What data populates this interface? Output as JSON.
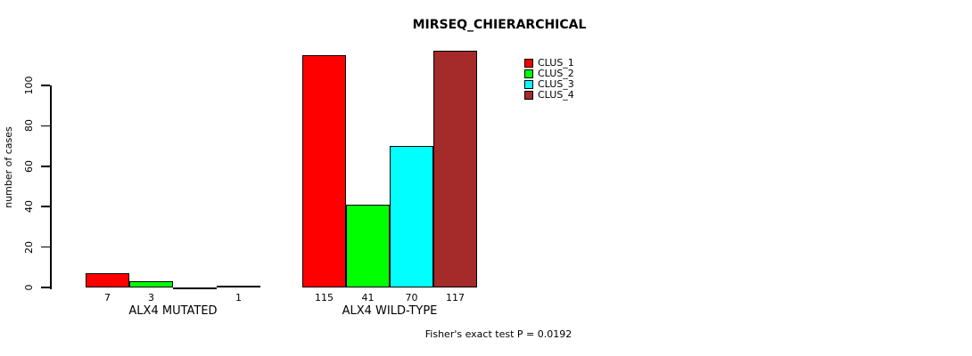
{
  "chart_data": {
    "type": "bar",
    "title": "MIRSEQ_CHIERARCHICAL",
    "ylabel": "number of cases",
    "categories": [
      "ALX4 MUTATED",
      "ALX4 WILD-TYPE"
    ],
    "series": [
      {
        "name": "CLUS_1",
        "color": "#FF0000",
        "values": [
          7,
          115
        ]
      },
      {
        "name": "CLUS_2",
        "color": "#00FF00",
        "values": [
          3,
          41
        ]
      },
      {
        "name": "CLUS_3",
        "color": "#00FFFF",
        "values": [
          0,
          70
        ]
      },
      {
        "name": "CLUS_4",
        "color": "#A52A2A",
        "values": [
          1,
          117
        ]
      }
    ],
    "bar_labels": [
      [
        "7",
        "3",
        "",
        "1"
      ],
      [
        "115",
        "41",
        "70",
        "117"
      ]
    ],
    "yticks": [
      0,
      20,
      40,
      60,
      80,
      100
    ],
    "ylim": [
      0,
      120
    ],
    "grid": false,
    "legend_position": "top-right",
    "annotation": "Fisher's exact test P = 0.0192"
  }
}
